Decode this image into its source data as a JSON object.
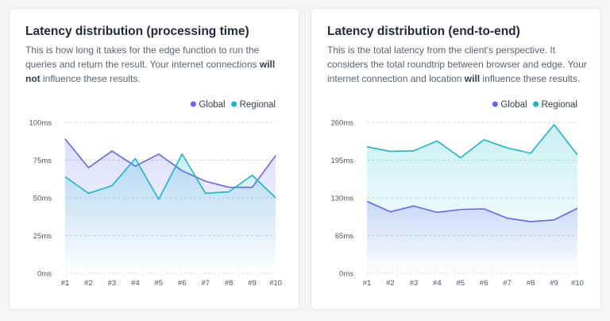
{
  "chart_data": [
    {
      "type": "area",
      "title": "Latency distribution (processing time)",
      "description": {
        "part1": "This is how long it takes for the edge function to run the queries and return the result. Your internet connections ",
        "bold1": "will not",
        "part2": " influence these results."
      },
      "categories": [
        "#1",
        "#2",
        "#3",
        "#4",
        "#5",
        "#6",
        "#7",
        "#8",
        "#9",
        "#10"
      ],
      "y_ticks": [
        0,
        25,
        50,
        75,
        100
      ],
      "y_tick_labels": [
        "0ms",
        "25ms",
        "50ms",
        "75ms",
        "100ms"
      ],
      "ylim": [
        0,
        100
      ],
      "legend": "top-right",
      "grid": true,
      "series": [
        {
          "name": "Global",
          "color": "#6366f1",
          "values": [
            89,
            70,
            81,
            71,
            79,
            68,
            61,
            57,
            57,
            78
          ]
        },
        {
          "name": "Regional",
          "color": "#14b8c8",
          "values": [
            64,
            53,
            58,
            76,
            49,
            79,
            53,
            54,
            65,
            50
          ]
        }
      ]
    },
    {
      "type": "area",
      "title": "Latency distribution (end-to-end)",
      "description": {
        "part1": "This is the total latency from the client's perspective. It considers the total roundtrip between browser and edge. Your internet connection and location ",
        "bold1": "will",
        "part2": " influence these results."
      },
      "categories": [
        "#1",
        "#2",
        "#3",
        "#4",
        "#5",
        "#6",
        "#7",
        "#8",
        "#9",
        "#10"
      ],
      "y_ticks": [
        0,
        65,
        130,
        195,
        260
      ],
      "y_tick_labels": [
        "0ms",
        "65ms",
        "130ms",
        "195ms",
        "260ms"
      ],
      "ylim": [
        0,
        260
      ],
      "legend": "top-right",
      "grid": true,
      "series": [
        {
          "name": "Global",
          "color": "#6366f1",
          "values": [
            124,
            106,
            116,
            105,
            110,
            111,
            95,
            89,
            92,
            112
          ]
        },
        {
          "name": "Regional",
          "color": "#14b8c8",
          "values": [
            218,
            210,
            211,
            228,
            199,
            230,
            216,
            207,
            256,
            204
          ]
        }
      ]
    }
  ]
}
